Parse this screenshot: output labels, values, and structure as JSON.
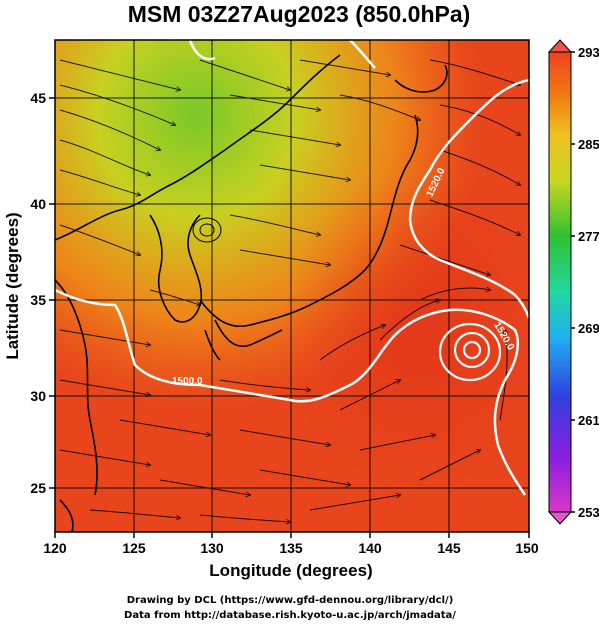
{
  "title": "MSM 03Z27Aug2023 (850.0hPa)",
  "x_axis": {
    "label": "Longitude (degrees)",
    "ticks": [
      "120",
      "125",
      "130",
      "135",
      "140",
      "145",
      "150"
    ],
    "range": [
      120,
      150
    ]
  },
  "y_axis": {
    "label": "Latitude  (degrees)",
    "ticks": [
      "25",
      "30",
      "35",
      "40",
      "45"
    ],
    "range": [
      22.4,
      47.6
    ]
  },
  "colorbar": {
    "ticks": [
      "293",
      "285",
      "277",
      "269",
      "261",
      "253"
    ],
    "range": [
      253,
      293
    ],
    "colors": [
      "#d838c8",
      "#8a1ee0",
      "#3040e0",
      "#20b0f0",
      "#20d8a0",
      "#30c030",
      "#c8d820",
      "#f0c020",
      "#f08010",
      "#f04020"
    ]
  },
  "contours": [
    {
      "label": "1500.0"
    },
    {
      "label": "1520.0"
    },
    {
      "label": "1520.0"
    }
  ],
  "credits": {
    "line1": "Drawing by DCL (https://www.gfd-dennou.org/library/dcl/)",
    "line2": "Data from http://database.rish.kyoto-u.ac.jp/arch/jmadata/"
  },
  "map_colors": {
    "warm": "#e8401c",
    "mid": "#f07a18",
    "cool": "#c8d020",
    "green": "#7ac828",
    "land": "#000000",
    "contour": "#ffffff"
  }
}
